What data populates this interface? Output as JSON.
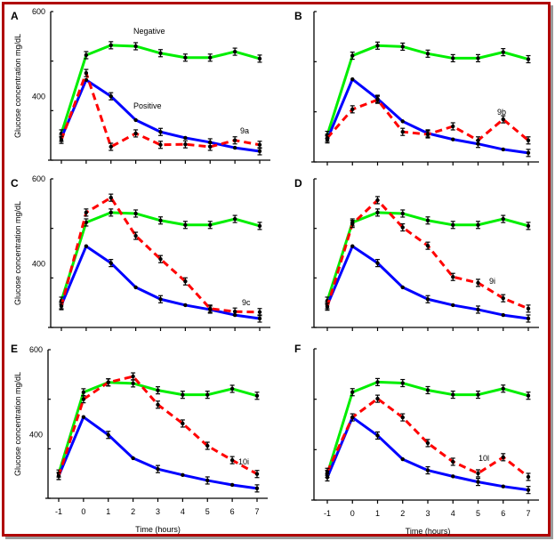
{
  "figure": {
    "border_color": "#b00000",
    "shadow_color": "#9a9a9a"
  },
  "chart_data": {
    "type": "line",
    "shared": {
      "x": [
        -1,
        0,
        1,
        2,
        3,
        4,
        5,
        6,
        7
      ],
      "xlabel": "Time (hours)",
      "ylabel": "Glucose concentration mg/dL",
      "ylim": [
        300,
        600
      ],
      "yticks": [
        300,
        400,
        500,
        600
      ],
      "ytick_labels_shown": [
        "600",
        "400"
      ],
      "xtick_labels": [
        "-1",
        "0",
        "1",
        "2",
        "3",
        "4",
        "5",
        "6",
        "7"
      ],
      "grid": false,
      "error_bars": true
    },
    "series_styles": {
      "negative": {
        "color": "#00ee00",
        "dash": "solid"
      },
      "positive": {
        "color": "#0000ff",
        "dash": "solid"
      },
      "compound": {
        "color": "#ff0000",
        "dash": "dashed"
      }
    },
    "panels": [
      {
        "letter": "A",
        "compound_label": "9a",
        "series": [
          {
            "name": "Negative",
            "key": "negative",
            "values": [
              354,
              512,
              532,
              530,
              516,
              507,
              507,
              519,
              505
            ],
            "label_shown": "Negative"
          },
          {
            "name": "Positive",
            "key": "positive",
            "values": [
              345,
              462,
              429,
              381,
              357,
              345,
              336,
              325,
              318
            ],
            "label_shown": "Positive"
          },
          {
            "name": "9a",
            "key": "compound",
            "values": [
              341,
              476,
              327,
              354,
              331,
              332,
              327,
              340,
              331
            ]
          }
        ]
      },
      {
        "letter": "B",
        "compound_label": "9b",
        "series": [
          {
            "name": "Negative",
            "key": "negative",
            "values": [
              354,
              512,
              532,
              530,
              516,
              507,
              507,
              519,
              505
            ]
          },
          {
            "name": "Positive",
            "key": "positive",
            "values": [
              345,
              465,
              426,
              381,
              357,
              345,
              336,
              325,
              318
            ]
          },
          {
            "name": "9b",
            "key": "compound",
            "values": [
              348,
              405,
              424,
              360,
              355,
              371,
              343,
              385,
              343
            ]
          }
        ]
      },
      {
        "letter": "C",
        "compound_label": "9c",
        "series": [
          {
            "name": "Negative",
            "key": "negative",
            "values": [
              354,
              512,
              532,
              530,
              516,
              507,
              507,
              519,
              505
            ]
          },
          {
            "name": "Positive",
            "key": "positive",
            "values": [
              345,
              464,
              430,
              381,
              357,
              345,
              336,
              325,
              318
            ]
          },
          {
            "name": "9c",
            "key": "compound",
            "values": [
              343,
              532,
              562,
              485,
              438,
              393,
              338,
              332,
              331
            ]
          }
        ]
      },
      {
        "letter": "D",
        "compound_label": "9i",
        "series": [
          {
            "name": "Negative",
            "key": "negative",
            "values": [
              354,
              512,
              532,
              530,
              516,
              507,
              507,
              519,
              505
            ]
          },
          {
            "name": "Positive",
            "key": "positive",
            "values": [
              345,
              464,
              430,
              381,
              357,
              345,
              336,
              325,
              318
            ]
          },
          {
            "name": "9i",
            "key": "compound",
            "values": [
              342,
              509,
              557,
              502,
              465,
              402,
              390,
              359,
              338
            ]
          }
        ]
      },
      {
        "letter": "E",
        "compound_label": "10i",
        "series": [
          {
            "name": "Negative",
            "key": "negative",
            "values": [
              350,
              514,
              534,
              532,
              518,
              509,
              509,
              521,
              507
            ]
          },
          {
            "name": "Positive",
            "key": "positive",
            "values": [
              345,
              464,
              428,
              381,
              359,
              347,
              336,
              327,
              320
            ]
          },
          {
            "name": "10i",
            "key": "compound",
            "values": [
              345,
              500,
              534,
              546,
              489,
              451,
              406,
              377,
              349
            ]
          }
        ]
      },
      {
        "letter": "F",
        "compound_label": "10l",
        "series": [
          {
            "name": "Negative",
            "key": "negative",
            "values": [
              352,
              514,
              534,
              532,
              518,
              509,
              509,
              521,
              507
            ]
          },
          {
            "name": "Positive",
            "key": "positive",
            "values": [
              345,
              464,
              428,
              381,
              359,
              347,
              336,
              327,
              320
            ]
          },
          {
            "name": "10l",
            "key": "compound",
            "values": [
              356,
              464,
              501,
              464,
              413,
              376,
              353,
              385,
              346
            ]
          }
        ]
      }
    ]
  }
}
